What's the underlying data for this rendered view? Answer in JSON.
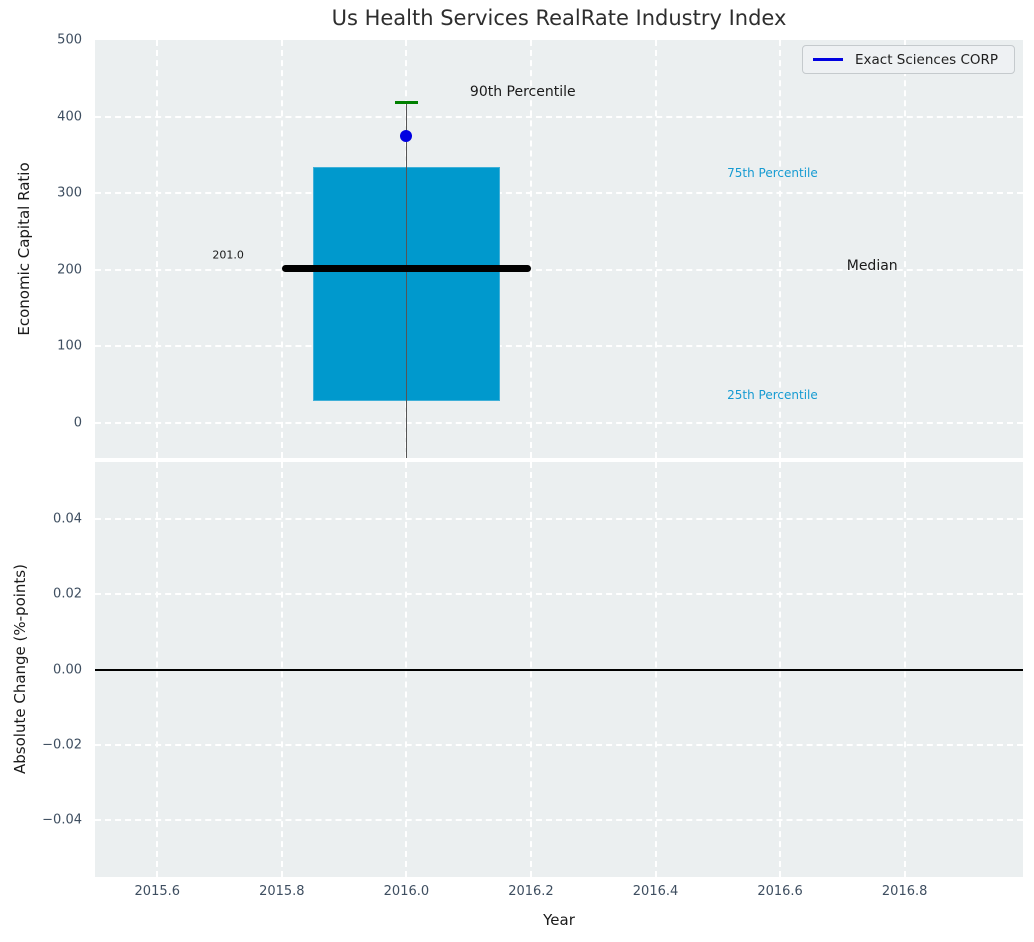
{
  "title": "Us Health Services RealRate Industry Index",
  "legend": {
    "label": "Exact Sciences CORP"
  },
  "colors": {
    "box_fill": "#0099cd",
    "box_edge": "#3fb0d8",
    "cap_green": "#008000",
    "company_blue": "#0000e1",
    "median_black": "#000000",
    "whisker_gray": "#555555",
    "cyan_text": "#169bd2",
    "black_text": "#1a1a1a",
    "tick_text": "#3e4e60",
    "axes_bg": "#ebeff0",
    "grid": "#ffffff",
    "zero_line": "#000000"
  },
  "chart_data": [
    {
      "type": "box",
      "panel": "top",
      "title": "Us Health Services RealRate Industry Index",
      "ylabel": "Economic Capital Ratio",
      "xlim": [
        2015.5,
        2016.99
      ],
      "ylim": [
        -46,
        500
      ],
      "grid": true,
      "y_ticks": [
        {
          "v": 0,
          "label": "0"
        },
        {
          "v": 100,
          "label": "100"
        },
        {
          "v": 200,
          "label": "200"
        },
        {
          "v": 300,
          "label": "300"
        },
        {
          "v": 400,
          "label": "400"
        },
        {
          "v": 500,
          "label": "500"
        }
      ],
      "x_ticks": [
        {
          "v": 2015.6,
          "label": "2015.6"
        },
        {
          "v": 2015.8,
          "label": "2015.8"
        },
        {
          "v": 2016.0,
          "label": "2016.0"
        },
        {
          "v": 2016.2,
          "label": "2016.2"
        },
        {
          "v": 2016.4,
          "label": "2016.4"
        },
        {
          "v": 2016.6,
          "label": "2016.6"
        },
        {
          "v": 2016.8,
          "label": "2016.8"
        }
      ],
      "box": {
        "x": 2016.0,
        "x_left": 2015.85,
        "x_right": 2016.15,
        "p25": 28,
        "p75": 334,
        "median": 201.0,
        "p90": 418,
        "whisker_bottom": -46
      },
      "median_line": {
        "x_left": 2015.8,
        "x_right": 2016.2,
        "value": 201.0
      },
      "p90_cap": {
        "x_left": 2015.982,
        "x_right": 2016.018,
        "value": 418
      },
      "company_point": {
        "name": "Exact Sciences CORP",
        "x": 2016.0,
        "value": 375
      },
      "annotations": [
        {
          "text": "90th Percentile",
          "x": 2016.102,
          "y": 432,
          "color": "black",
          "size": 14,
          "anchor": "left"
        },
        {
          "text": "75th Percentile",
          "x": 2016.515,
          "y": 326,
          "color": "cyan",
          "size": 12,
          "anchor": "left"
        },
        {
          "text": "Median",
          "x": 2016.707,
          "y": 205,
          "color": "black",
          "size": 14,
          "anchor": "left"
        },
        {
          "text": "25th Percentile",
          "x": 2016.515,
          "y": 36,
          "color": "cyan",
          "size": 12,
          "anchor": "left"
        },
        {
          "text": "201.0",
          "x": 2015.739,
          "y": 219,
          "color": "black",
          "size": 11,
          "anchor": "right"
        }
      ],
      "legend": {
        "label": "Exact Sciences CORP",
        "position": "upper right"
      }
    },
    {
      "type": "line",
      "panel": "bottom",
      "ylabel": "Absolute Change (%-points)",
      "xlabel": "Year",
      "xlim": [
        2015.5,
        2016.99
      ],
      "ylim": [
        -0.055,
        0.055
      ],
      "grid": true,
      "y_ticks": [
        {
          "v": 0.04,
          "label": "0.04"
        },
        {
          "v": 0.02,
          "label": "0.02"
        },
        {
          "v": 0.0,
          "label": "0.00"
        },
        {
          "v": -0.02,
          "label": "−0.02"
        },
        {
          "v": -0.04,
          "label": "−0.04"
        }
      ],
      "x_ticks": [
        {
          "v": 2015.6,
          "label": "2015.6"
        },
        {
          "v": 2015.8,
          "label": "2015.8"
        },
        {
          "v": 2016.0,
          "label": "2016.0"
        },
        {
          "v": 2016.2,
          "label": "2016.2"
        },
        {
          "v": 2016.4,
          "label": "2016.4"
        },
        {
          "v": 2016.6,
          "label": "2016.6"
        },
        {
          "v": 2016.8,
          "label": "2016.8"
        }
      ],
      "zero_line": 0.0,
      "series": []
    }
  ]
}
